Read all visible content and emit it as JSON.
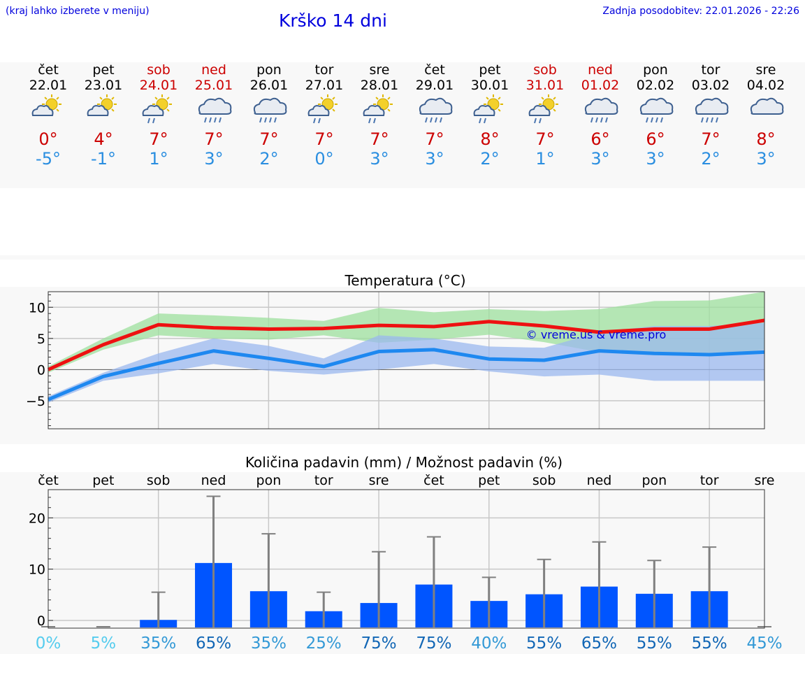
{
  "header": {
    "left_note": "(kraj lahko izberete v meniju)",
    "title": "Krško 14 dni",
    "updated": "Zadnja posodobitev: 22.01.2026 - 22:26"
  },
  "forecast": [
    {
      "day": "čet",
      "date": "22.01",
      "weekend": false,
      "icon": "sun-cloud-icon",
      "tmax": "0°",
      "tmin": "-5°"
    },
    {
      "day": "pet",
      "date": "23.01",
      "weekend": false,
      "icon": "sun-cloud-icon",
      "tmax": "4°",
      "tmin": "-1°"
    },
    {
      "day": "sob",
      "date": "24.01",
      "weekend": true,
      "icon": "sun-rain-icon",
      "tmax": "7°",
      "tmin": "1°"
    },
    {
      "day": "ned",
      "date": "25.01",
      "weekend": true,
      "icon": "rain-cloud-icon",
      "tmax": "7°",
      "tmin": "3°"
    },
    {
      "day": "pon",
      "date": "26.01",
      "weekend": false,
      "icon": "rain-cloud-icon",
      "tmax": "7°",
      "tmin": "2°"
    },
    {
      "day": "tor",
      "date": "27.01",
      "weekend": false,
      "icon": "sun-rain-icon",
      "tmax": "7°",
      "tmin": "0°"
    },
    {
      "day": "sre",
      "date": "28.01",
      "weekend": false,
      "icon": "sun-rain-icon",
      "tmax": "7°",
      "tmin": "3°"
    },
    {
      "day": "čet",
      "date": "29.01",
      "weekend": false,
      "icon": "rain-cloud-icon",
      "tmax": "7°",
      "tmin": "3°"
    },
    {
      "day": "pet",
      "date": "30.01",
      "weekend": false,
      "icon": "sun-rain-icon",
      "tmax": "8°",
      "tmin": "2°"
    },
    {
      "day": "sob",
      "date": "31.01",
      "weekend": true,
      "icon": "sun-rain-icon",
      "tmax": "7°",
      "tmin": "1°"
    },
    {
      "day": "ned",
      "date": "01.02",
      "weekend": true,
      "icon": "rain-cloud-icon",
      "tmax": "6°",
      "tmin": "3°"
    },
    {
      "day": "pon",
      "date": "02.02",
      "weekend": false,
      "icon": "rain-cloud-icon",
      "tmax": "6°",
      "tmin": "3°"
    },
    {
      "day": "tor",
      "date": "03.02",
      "weekend": false,
      "icon": "rain-cloud-icon",
      "tmax": "7°",
      "tmin": "2°"
    },
    {
      "day": "sre",
      "date": "04.02",
      "weekend": false,
      "icon": "cloud-icon",
      "tmax": "8°",
      "tmin": "3°"
    }
  ],
  "colors": {
    "max_line": "#ee1111",
    "min_line": "#1e88f0",
    "max_band": "#9ee09e",
    "min_band": "#9bb8ef",
    "bar": "#0055ff",
    "error_bar": "#808080"
  },
  "watermark": "© vreme.us & vreme.pro",
  "chart_data": [
    {
      "type": "line",
      "title": "Temperatura (°C)",
      "xlabel": "",
      "ylabel": "",
      "ylim": [
        -9.5,
        12.5
      ],
      "yticks": [
        10,
        5,
        0,
        -5
      ],
      "ytick_labels": [
        "10",
        "5",
        "0",
        "−5"
      ],
      "x": [
        0,
        1,
        2,
        3,
        4,
        5,
        6,
        7,
        8,
        9,
        10,
        11,
        12,
        13
      ],
      "series": [
        {
          "name": "max",
          "values": [
            0,
            4,
            7.2,
            6.7,
            6.5,
            6.6,
            7.1,
            6.9,
            7.7,
            7.0,
            6.0,
            6.5,
            6.5,
            7.9
          ]
        },
        {
          "name": "min",
          "values": [
            -4.8,
            -1.1,
            1.0,
            3.0,
            1.8,
            0.5,
            2.9,
            3.2,
            1.7,
            1.5,
            3.0,
            2.6,
            2.4,
            2.8
          ]
        }
      ],
      "bands": [
        {
          "name": "max_range",
          "lower": [
            -0.5,
            3.2,
            5.5,
            5.0,
            4.8,
            5.5,
            4.3,
            4.8,
            5.6,
            4.4,
            2.8,
            2.3,
            2.2,
            3.2
          ],
          "upper": [
            0.5,
            5.0,
            9.0,
            8.7,
            8.3,
            7.8,
            9.9,
            9.2,
            9.7,
            9.4,
            9.7,
            11.0,
            11.1,
            12.5
          ]
        },
        {
          "name": "min_range",
          "lower": [
            -5.3,
            -1.8,
            -0.6,
            0.9,
            -0.2,
            -0.8,
            0.0,
            0.9,
            -0.3,
            -1.1,
            -0.8,
            -1.8,
            -1.8,
            -1.8
          ],
          "upper": [
            -4.3,
            -0.5,
            2.6,
            5.0,
            3.8,
            1.8,
            5.5,
            5.0,
            3.7,
            3.5,
            6.0,
            7.0,
            7.0,
            7.5
          ]
        }
      ]
    },
    {
      "type": "bar",
      "title": "Količina padavin (mm) / Možnost padavin (%)",
      "xlabel": "",
      "ylabel": "",
      "ylim": [
        -1.5,
        25.5
      ],
      "yticks": [
        20,
        10,
        0
      ],
      "ytick_labels": [
        "20",
        "10",
        "0"
      ],
      "categories": [
        "čet",
        "pet",
        "sob",
        "ned",
        "pon",
        "tor",
        "sre",
        "čet",
        "pet",
        "sob",
        "ned",
        "pon",
        "tor",
        "sre"
      ],
      "values": [
        0,
        0,
        0.1,
        11.2,
        5.7,
        1.8,
        3.4,
        7.0,
        3.8,
        5.1,
        6.6,
        5.2,
        5.7,
        0
      ],
      "upper_error": [
        0,
        0,
        5.5,
        24.2,
        16.9,
        5.5,
        13.4,
        16.3,
        8.4,
        11.9,
        15.3,
        11.7,
        14.3,
        0
      ],
      "probabilities": [
        "0%",
        "5%",
        "35%",
        "65%",
        "35%",
        "25%",
        "75%",
        "75%",
        "40%",
        "55%",
        "65%",
        "55%",
        "55%",
        "45%"
      ],
      "probability_colors": [
        "#55ccee",
        "#55ccee",
        "#3399d6",
        "#1166b5",
        "#3399d6",
        "#3399d6",
        "#1166b5",
        "#1166b5",
        "#3399d6",
        "#1166b5",
        "#1166b5",
        "#1166b5",
        "#1166b5",
        "#3399d6"
      ]
    }
  ]
}
